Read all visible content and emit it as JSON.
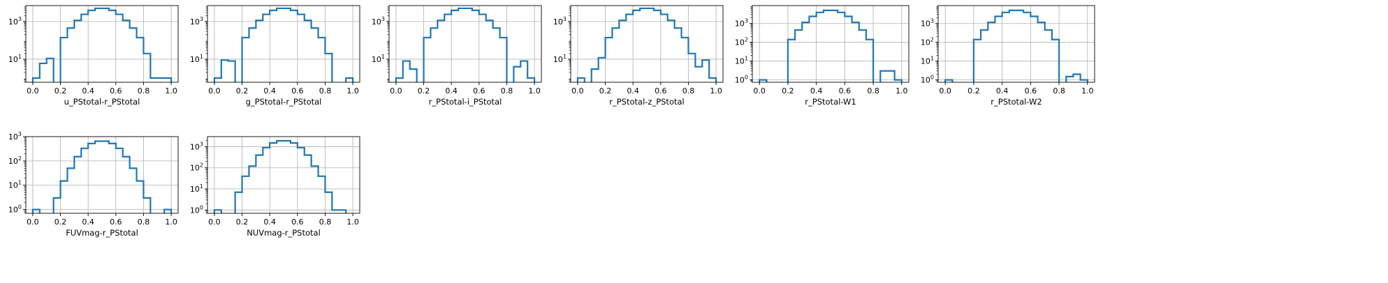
{
  "colors": {
    "line": "#1f77b4",
    "grid": "#b0b0b0",
    "axis": "#000000"
  },
  "chart_data": [
    {
      "type": "histogram",
      "xlabel": "u_PStotal-r_PStotal",
      "yscale": "log",
      "ylim": [
        0.6,
        7000
      ],
      "yticks": [
        10,
        1000
      ],
      "ytick_labels": [
        "10^1",
        "10^3"
      ],
      "xticks": [
        "0.0",
        "0.2",
        "0.4",
        "0.6",
        "0.8",
        "1.0"
      ],
      "bin_width": 0.05,
      "bin_starts": [
        0.0,
        0.05,
        0.1,
        0.15,
        0.2,
        0.25,
        0.3,
        0.35,
        0.4,
        0.45,
        0.5,
        0.55,
        0.6,
        0.65,
        0.7,
        0.75,
        0.8,
        0.85,
        0.9,
        0.95
      ],
      "counts": [
        1,
        6,
        11,
        0,
        140,
        450,
        1150,
        2400,
        3900,
        5000,
        5000,
        3900,
        2400,
        1150,
        450,
        140,
        20,
        1,
        1,
        1
      ],
      "grid": true
    },
    {
      "type": "histogram",
      "xlabel": "g_PStotal-r_PStotal",
      "yscale": "log",
      "ylim": [
        0.6,
        7000
      ],
      "yticks": [
        10,
        1000
      ],
      "ytick_labels": [
        "10^1",
        "10^3"
      ],
      "xticks": [
        "0.0",
        "0.2",
        "0.4",
        "0.6",
        "0.8",
        "1.0"
      ],
      "bin_width": 0.05,
      "bin_starts": [
        0.0,
        0.05,
        0.1,
        0.15,
        0.2,
        0.25,
        0.3,
        0.35,
        0.4,
        0.45,
        0.5,
        0.55,
        0.6,
        0.65,
        0.7,
        0.75,
        0.8,
        0.85,
        0.9,
        0.95
      ],
      "counts": [
        1,
        9,
        8,
        0,
        140,
        450,
        1150,
        2400,
        3900,
        5000,
        5000,
        3900,
        2400,
        1150,
        450,
        140,
        20,
        0,
        0,
        1
      ],
      "grid": true
    },
    {
      "type": "histogram",
      "xlabel": "r_PStotal-i_PStotal",
      "yscale": "log",
      "ylim": [
        0.6,
        7000
      ],
      "yticks": [
        10,
        1000
      ],
      "ytick_labels": [
        "10^1",
        "10^3"
      ],
      "xticks": [
        "0.0",
        "0.2",
        "0.4",
        "0.6",
        "0.8",
        "1.0"
      ],
      "bin_width": 0.05,
      "bin_starts": [
        0.0,
        0.05,
        0.1,
        0.15,
        0.2,
        0.25,
        0.3,
        0.35,
        0.4,
        0.45,
        0.5,
        0.55,
        0.6,
        0.65,
        0.7,
        0.75,
        0.8,
        0.85,
        0.9,
        0.95
      ],
      "counts": [
        1,
        8,
        3,
        0,
        140,
        450,
        1150,
        2400,
        3900,
        5000,
        5000,
        3900,
        2400,
        1150,
        450,
        140,
        0,
        4,
        8,
        1
      ],
      "grid": true
    },
    {
      "type": "histogram",
      "xlabel": "r_PStotal-z_PStotal",
      "yscale": "log",
      "ylim": [
        0.6,
        7000
      ],
      "yticks": [
        10,
        1000
      ],
      "ytick_labels": [
        "10^1",
        "10^3"
      ],
      "xticks": [
        "0.0",
        "0.2",
        "0.4",
        "0.6",
        "0.8",
        "1.0"
      ],
      "bin_width": 0.05,
      "bin_starts": [
        0.0,
        0.05,
        0.1,
        0.15,
        0.2,
        0.25,
        0.3,
        0.35,
        0.4,
        0.45,
        0.5,
        0.55,
        0.6,
        0.65,
        0.7,
        0.75,
        0.8,
        0.85,
        0.9,
        0.95
      ],
      "counts": [
        1,
        0,
        3,
        12,
        140,
        450,
        1150,
        2400,
        3900,
        5000,
        5000,
        3900,
        2400,
        1150,
        450,
        140,
        20,
        4,
        9,
        1
      ],
      "grid": true
    },
    {
      "type": "histogram",
      "xlabel": "r_PStotal-W1",
      "yscale": "log",
      "ylim": [
        0.75,
        9000
      ],
      "yticks": [
        1,
        10,
        100,
        1000
      ],
      "ytick_labels": [
        "10^0",
        "10^1",
        "10^2",
        "10^3"
      ],
      "xticks": [
        "0.0",
        "0.2",
        "0.4",
        "0.6",
        "0.8",
        "1.0"
      ],
      "bin_width": 0.05,
      "bin_starts": [
        0.0,
        0.05,
        0.1,
        0.15,
        0.2,
        0.25,
        0.3,
        0.35,
        0.4,
        0.45,
        0.5,
        0.55,
        0.6,
        0.65,
        0.7,
        0.75,
        0.8,
        0.85,
        0.9,
        0.95
      ],
      "counts": [
        1,
        0,
        0,
        0,
        140,
        450,
        1150,
        2400,
        3900,
        5000,
        5000,
        3900,
        2400,
        1150,
        450,
        140,
        0,
        3,
        3,
        1
      ],
      "grid": true
    },
    {
      "type": "histogram",
      "xlabel": "r_PStotal-W2",
      "yscale": "log",
      "ylim": [
        0.75,
        9000
      ],
      "yticks": [
        1,
        10,
        100,
        1000
      ],
      "ytick_labels": [
        "10^0",
        "10^1",
        "10^2",
        "10^3"
      ],
      "xticks": [
        "0.0",
        "0.2",
        "0.4",
        "0.6",
        "0.8",
        "1.0"
      ],
      "bin_width": 0.05,
      "bin_starts": [
        0.0,
        0.05,
        0.1,
        0.15,
        0.2,
        0.25,
        0.3,
        0.35,
        0.4,
        0.45,
        0.5,
        0.55,
        0.6,
        0.65,
        0.7,
        0.75,
        0.8,
        0.85,
        0.9,
        0.95
      ],
      "counts": [
        1,
        0,
        0,
        0,
        140,
        450,
        1150,
        2400,
        3900,
        5000,
        5000,
        3900,
        2400,
        1150,
        450,
        140,
        0,
        1.5,
        2,
        1
      ],
      "grid": true
    },
    {
      "type": "histogram",
      "xlabel": "FUVmag-r_PStotal",
      "yscale": "log",
      "ylim": [
        0.7,
        1000
      ],
      "yticks": [
        1,
        10,
        100,
        1000
      ],
      "ytick_labels": [
        "10^0",
        "10^1",
        "10^2",
        "10^3"
      ],
      "xticks": [
        "0.0",
        "0.2",
        "0.4",
        "0.6",
        "0.8",
        "1.0"
      ],
      "bin_width": 0.05,
      "bin_starts": [
        0.0,
        0.05,
        0.1,
        0.15,
        0.2,
        0.25,
        0.3,
        0.35,
        0.4,
        0.45,
        0.5,
        0.55,
        0.6,
        0.65,
        0.7,
        0.75,
        0.8,
        0.85,
        0.9,
        0.95
      ],
      "counts": [
        1,
        0,
        0,
        3,
        15,
        50,
        150,
        330,
        520,
        650,
        650,
        520,
        330,
        150,
        50,
        15,
        3,
        0,
        0,
        1
      ],
      "grid": true
    },
    {
      "type": "histogram",
      "xlabel": "NUVmag-r_PStotal",
      "yscale": "log",
      "ylim": [
        0.7,
        3000
      ],
      "yticks": [
        1,
        10,
        100,
        1000
      ],
      "ytick_labels": [
        "10^0",
        "10^1",
        "10^2",
        "10^3"
      ],
      "xticks": [
        "0.0",
        "0.2",
        "0.4",
        "0.6",
        "0.8",
        "1.0"
      ],
      "bin_width": 0.05,
      "bin_starts": [
        0.0,
        0.05,
        0.1,
        0.15,
        0.2,
        0.25,
        0.3,
        0.35,
        0.4,
        0.45,
        0.5,
        0.55,
        0.6,
        0.65,
        0.7,
        0.75,
        0.8,
        0.85,
        0.9,
        0.95
      ],
      "counts": [
        1,
        0,
        0,
        7,
        40,
        120,
        400,
        900,
        1500,
        1900,
        1900,
        1500,
        900,
        400,
        120,
        40,
        7,
        1,
        1,
        0
      ],
      "grid": true
    }
  ]
}
